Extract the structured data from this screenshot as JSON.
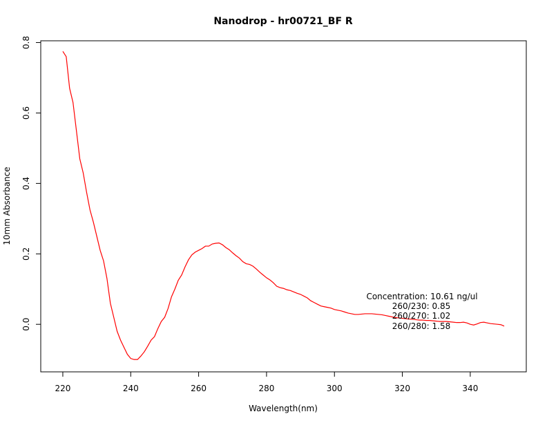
{
  "chart_data": {
    "type": "line",
    "title": "Nanodrop - hr00721_BF R",
    "xlabel": "Wavelength(nm)",
    "ylabel": "10mm Absorbance",
    "xlim": [
      213.5,
      356.5
    ],
    "ylim": [
      -0.135,
      0.805
    ],
    "x_ticks": [
      220,
      240,
      260,
      280,
      300,
      320,
      340
    ],
    "y_ticks": [
      0.0,
      0.2,
      0.4,
      0.6,
      0.8
    ],
    "x_tick_labels": [
      "220",
      "240",
      "260",
      "280",
      "300",
      "320",
      "340"
    ],
    "y_tick_labels": [
      "0.0",
      "0.2",
      "0.4",
      "0.6",
      "0.8"
    ],
    "grid": false,
    "legend": "none",
    "series": [
      {
        "color": "#ff0000",
        "x": [
          220,
          221,
          222,
          223,
          224,
          225,
          226,
          227,
          228,
          229,
          230,
          231,
          232,
          233,
          234,
          235,
          236,
          237,
          238,
          239,
          240,
          241,
          242,
          243,
          244,
          245,
          246,
          247,
          248,
          249,
          250,
          251,
          252,
          253,
          254,
          255,
          256,
          257,
          258,
          259,
          260,
          261,
          262,
          263,
          264,
          265,
          266,
          267,
          268,
          269,
          270,
          271,
          272,
          273,
          274,
          275,
          276,
          277,
          278,
          279,
          280,
          281,
          282,
          283,
          284,
          285,
          286,
          287,
          288,
          289,
          290,
          291,
          292,
          293,
          294,
          295,
          296,
          297,
          298,
          299,
          300,
          301,
          302,
          303,
          304,
          305,
          306,
          307,
          308,
          309,
          310,
          311,
          312,
          313,
          314,
          315,
          316,
          317,
          318,
          319,
          320,
          321,
          322,
          323,
          324,
          325,
          326,
          327,
          328,
          329,
          330,
          331,
          332,
          333,
          334,
          335,
          336,
          337,
          338,
          339,
          340,
          341,
          342,
          343,
          344,
          345,
          346,
          347,
          348,
          349,
          350
        ],
        "values": [
          0.775,
          0.76,
          0.67,
          0.63,
          0.55,
          0.47,
          0.43,
          0.375,
          0.325,
          0.29,
          0.25,
          0.21,
          0.18,
          0.13,
          0.06,
          0.02,
          -0.02,
          -0.045,
          -0.065,
          -0.085,
          -0.097,
          -0.1,
          -0.1,
          -0.09,
          -0.078,
          -0.062,
          -0.045,
          -0.035,
          -0.012,
          0.008,
          0.02,
          0.045,
          0.078,
          0.1,
          0.125,
          0.14,
          0.163,
          0.183,
          0.197,
          0.205,
          0.21,
          0.215,
          0.222,
          0.222,
          0.228,
          0.23,
          0.231,
          0.226,
          0.218,
          0.212,
          0.203,
          0.195,
          0.188,
          0.178,
          0.172,
          0.17,
          0.165,
          0.157,
          0.148,
          0.14,
          0.132,
          0.126,
          0.118,
          0.108,
          0.104,
          0.102,
          0.098,
          0.096,
          0.092,
          0.088,
          0.085,
          0.08,
          0.075,
          0.067,
          0.062,
          0.057,
          0.052,
          0.05,
          0.048,
          0.046,
          0.042,
          0.04,
          0.038,
          0.035,
          0.032,
          0.03,
          0.028,
          0.028,
          0.029,
          0.03,
          0.03,
          0.03,
          0.029,
          0.028,
          0.027,
          0.025,
          0.023,
          0.021,
          0.019,
          0.018,
          0.017,
          0.016,
          0.015,
          0.014,
          0.013,
          0.012,
          0.012,
          0.011,
          0.011,
          0.01,
          0.009,
          0.008,
          0.008,
          0.008,
          0.007,
          0.006,
          0.005,
          0.005,
          0.006,
          0.004,
          0.0,
          -0.002,
          0.001,
          0.005,
          0.006,
          0.004,
          0.002,
          0.001,
          0.0,
          -0.001,
          -0.005
        ]
      }
    ],
    "annotations": [
      "Concentration: 10.61 ng/ul",
      "260/230: 0.85",
      "260/270: 1.02",
      "260/280: 1.58"
    ]
  }
}
